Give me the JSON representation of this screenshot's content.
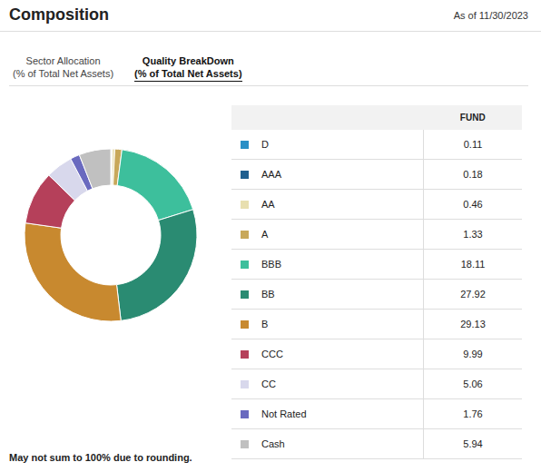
{
  "header": {
    "title": "Composition",
    "as_of": "As of 11/30/2023"
  },
  "tabs": [
    {
      "lines": [
        "Sector Allocation",
        "(% of Total Net Assets)"
      ],
      "active": false
    },
    {
      "lines": [
        "Quality BreakDown",
        "(% of Total Net Assets)"
      ],
      "active": true
    }
  ],
  "chart_data": {
    "type": "pie",
    "categories": [
      "D",
      "AAA",
      "AA",
      "A",
      "BBB",
      "BB",
      "B",
      "CCC",
      "CC",
      "Not Rated",
      "Cash"
    ],
    "values": [
      0.11,
      0.18,
      0.46,
      1.33,
      18.11,
      27.92,
      29.13,
      9.99,
      5.06,
      1.76,
      5.94
    ],
    "colors": [
      "#2a8fc6",
      "#1f5f8f",
      "#e8dfb0",
      "#c8a85a",
      "#3dbf9c",
      "#2a8b72",
      "#c8892f",
      "#b5405a",
      "#d8d8ec",
      "#6a6abf",
      "#c0c0c0"
    ],
    "data_labels": false
  },
  "table": {
    "column": "FUND"
  },
  "footnote": "May not sum to 100% due to rounding."
}
